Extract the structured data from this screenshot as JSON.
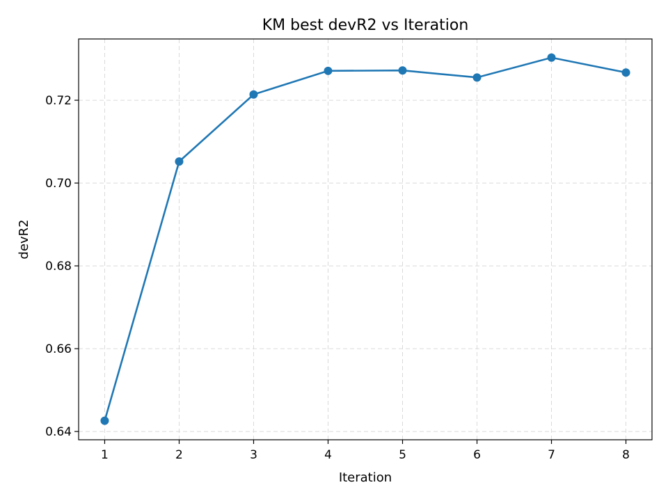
{
  "chart_data": {
    "type": "line",
    "title": "KM best devR2 vs Iteration",
    "xlabel": "Iteration",
    "ylabel": "devR2",
    "x": [
      1,
      2,
      3,
      4,
      5,
      6,
      7,
      8
    ],
    "series": [
      {
        "values": [
          0.6426,
          0.7052,
          0.7214,
          0.7271,
          0.7272,
          0.7255,
          0.7303,
          0.7267
        ],
        "color": "#1f77b4",
        "marker": "circle"
      }
    ],
    "xlim": [
      0.65,
      8.35
    ],
    "ylim": [
      0.638,
      0.7348
    ],
    "xticks": [
      1,
      2,
      3,
      4,
      5,
      6,
      7,
      8
    ],
    "xtick_labels": [
      "1",
      "2",
      "3",
      "4",
      "5",
      "6",
      "7",
      "8"
    ],
    "yticks": [
      0.64,
      0.66,
      0.68,
      0.7,
      0.72
    ],
    "ytick_labels": [
      "0.64",
      "0.66",
      "0.68",
      "0.70",
      "0.72"
    ],
    "grid": true,
    "legend": false
  }
}
